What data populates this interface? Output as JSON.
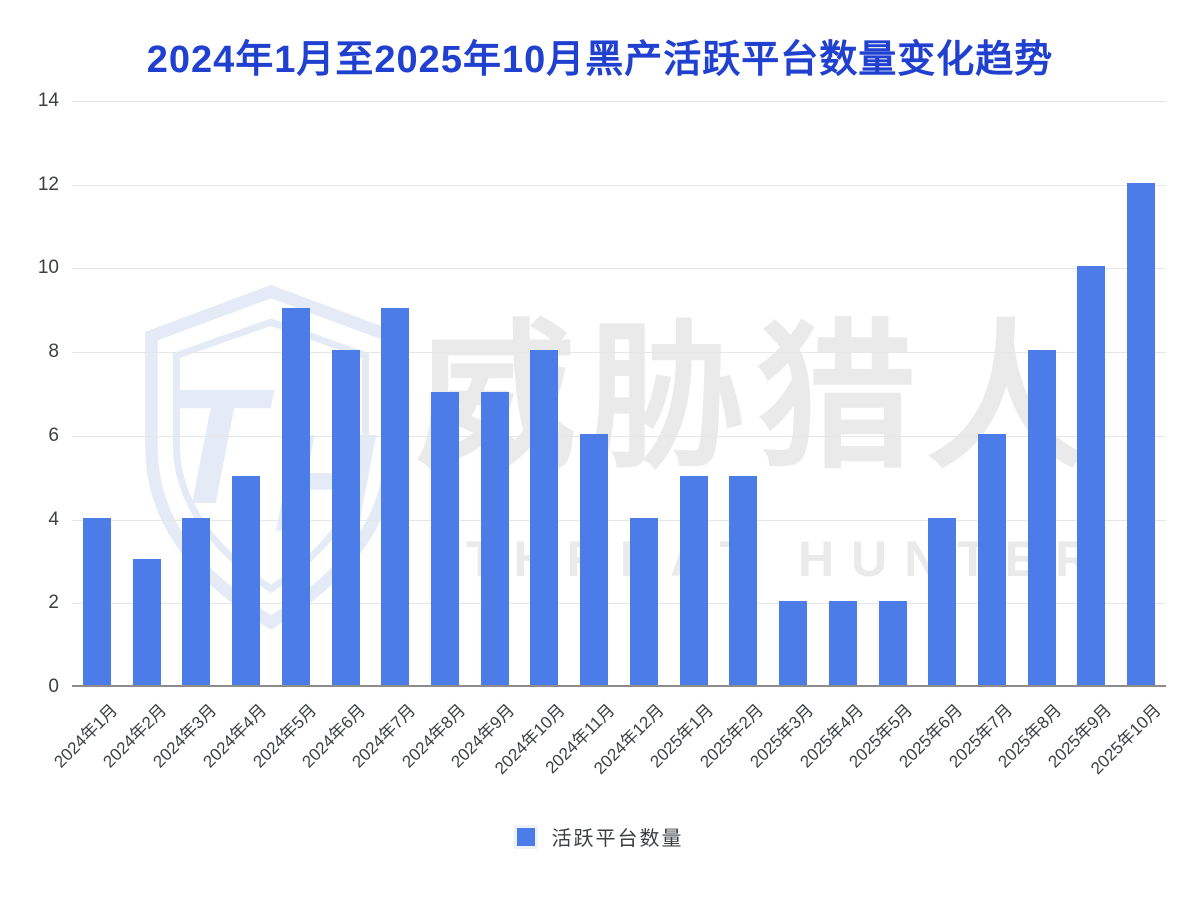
{
  "chart": {
    "title": "2024年1月至2025年10月黑产活跃平台数量变化趋势"
  },
  "legend": {
    "label": "活跃平台数量"
  },
  "watermark": {
    "monogram": "TH",
    "cn": "威胁猎人",
    "en": "THREAT HUNTER"
  },
  "colors": {
    "bar": "#4C7CE8",
    "title": "#2040D0",
    "axis_label": "#3C4043",
    "gridline": "#E7E7E7",
    "axis_line": "#8C8C8C",
    "watermark_gray": "#EAEAEA",
    "watermark_blue": "#E4EAF6"
  },
  "chart_data": {
    "type": "bar",
    "title": "2024年1月至2025年10月黑产活跃平台数量变化趋势",
    "categories": [
      "2024年1月",
      "2024年2月",
      "2024年3月",
      "2024年4月",
      "2024年5月",
      "2024年6月",
      "2024年7月",
      "2024年8月",
      "2024年9月",
      "2024年10月",
      "2024年11月",
      "2024年12月",
      "2025年1月",
      "2025年2月",
      "2025年3月",
      "2025年4月",
      "2025年5月",
      "2025年6月",
      "2025年7月",
      "2025年8月",
      "2025年9月",
      "2025年10月"
    ],
    "series": [
      {
        "name": "活跃平台数量",
        "values": [
          4,
          3,
          4,
          5,
          9,
          8,
          9,
          7,
          7,
          8,
          6,
          4,
          5,
          5,
          2,
          2,
          2,
          4,
          6,
          8,
          10,
          12
        ]
      }
    ],
    "xlabel": "",
    "ylabel": "",
    "ylim": [
      0,
      14
    ],
    "yticks": [
      0,
      2,
      4,
      6,
      8,
      10,
      12,
      14
    ],
    "grid": true,
    "legend_position": "bottom",
    "x_tick_rotation": -45
  }
}
